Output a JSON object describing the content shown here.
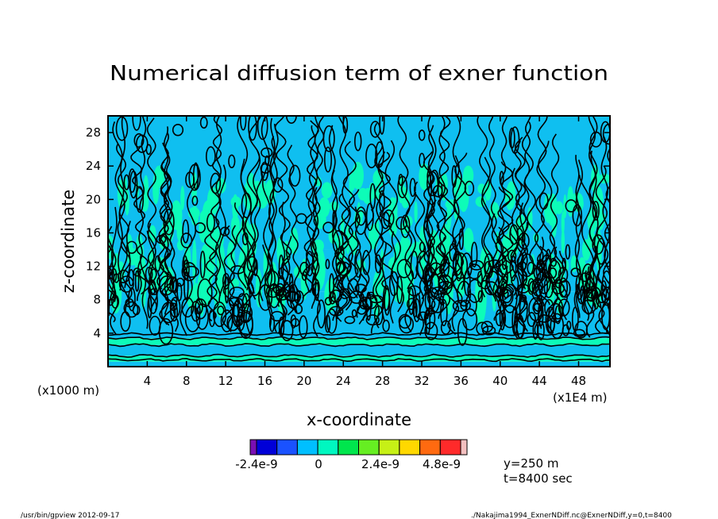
{
  "chart_data": {
    "type": "heatmap",
    "title": "Numerical diffusion term of exner function",
    "xlabel": "x-coordinate",
    "ylabel": "z-coordinate",
    "x_unit_left": "(x1000 m)",
    "x_unit_right": "(x1E4 m)",
    "x_ticks": [
      "4",
      "8",
      "12",
      "16",
      "20",
      "24",
      "28",
      "32",
      "36",
      "40",
      "44",
      "48"
    ],
    "y_ticks": [
      "4",
      "8",
      "12",
      "16",
      "20",
      "24",
      "28"
    ],
    "xlim": [
      0,
      51.2
    ],
    "ylim": [
      0,
      30
    ],
    "z_bands": [
      {
        "zmin": 0.0,
        "zmax": 0.6,
        "level": "mixed"
      },
      {
        "zmin": 0.6,
        "zmax": 1.3,
        "level": "0 to 1.2e-9"
      },
      {
        "zmin": 1.3,
        "zmax": 2.6,
        "level": "-1.2e-9 to 0"
      },
      {
        "zmin": 2.6,
        "zmax": 3.4,
        "level": "0 to 1.2e-9"
      },
      {
        "zmin": 3.4,
        "zmax": 9.0,
        "level": "-1.2e-9 to 0, dense contours"
      },
      {
        "zmin": 9.0,
        "zmax": 14.0,
        "level": "0 to 1.2e-9 patches"
      },
      {
        "zmin": 14.0,
        "zmax": 30.0,
        "level": "-1.2e-9 to 1.2e-9 wavy"
      }
    ],
    "colorbar": {
      "labels": [
        "-2.4e-9",
        "0",
        "2.4e-9",
        "4.8e-9"
      ],
      "colors": [
        "#7a0fb3",
        "#0000d8",
        "#1a52ff",
        "#00bfff",
        "#00f7c0",
        "#00e64d",
        "#66ee22",
        "#c6f016",
        "#ffd800",
        "#ff6a10",
        "#ff2a2a",
        "#f3c0c0"
      ]
    },
    "colors": {
      "negative_small": "#0fbff0",
      "positive_small": "#0dfcb8",
      "contour": "#000000"
    }
  },
  "annotations": {
    "y_pos": "y=250 m",
    "time": "t=8400 sec",
    "footer_left": "/usr/bin/gpview  2012-09-17",
    "footer_right": "./Nakajima1994_ExnerNDiff.nc@ExnerNDiff,y=0,t=8400"
  }
}
